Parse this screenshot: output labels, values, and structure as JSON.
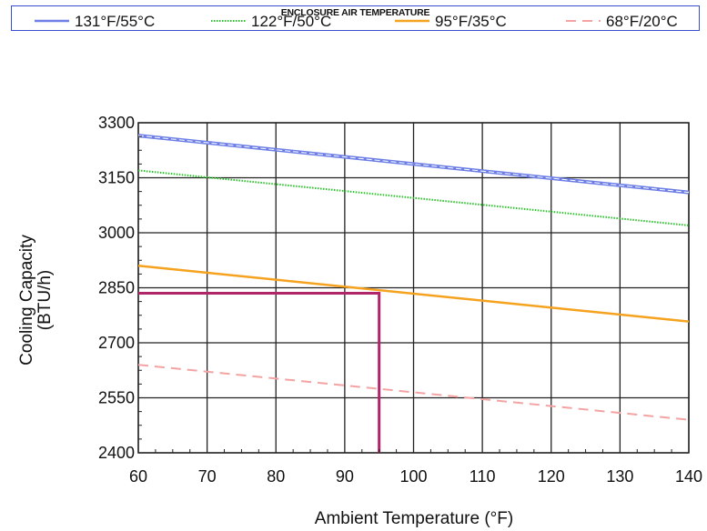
{
  "chart_data": {
    "type": "line",
    "legend_title": "ENCLOSURE AIR TEMPERATURE",
    "xlabel": "Ambient Temperature (°F)",
    "ylabel": [
      "Cooling Capacity",
      "(BTU/h)"
    ],
    "xlim": [
      60,
      140
    ],
    "ylim": [
      2400,
      3300
    ],
    "x_ticks": [
      60,
      70,
      80,
      90,
      100,
      110,
      120,
      130,
      140
    ],
    "y_ticks": [
      2400,
      2550,
      2700,
      2850,
      3000,
      3150,
      3300
    ],
    "grid": true,
    "legend_position": "top",
    "series": [
      {
        "name": "131°F/55°C",
        "x": [
          60,
          140
        ],
        "values": [
          3265,
          3110
        ],
        "color": "#6d7fe6",
        "style": "solid-double"
      },
      {
        "name": "122°F/50°C",
        "x": [
          60,
          140
        ],
        "values": [
          3170,
          3020
        ],
        "color": "#29c429",
        "style": "dotted"
      },
      {
        "name": "95°F/35°C",
        "x": [
          60,
          140
        ],
        "values": [
          2910,
          2758
        ],
        "color": "#f5a21e",
        "style": "solid"
      },
      {
        "name": "68°F/20°C",
        "x": [
          60,
          140
        ],
        "values": [
          2640,
          2490
        ],
        "color": "#f4a3a3",
        "style": "dashed"
      }
    ],
    "annotation": {
      "color": "#b0246a",
      "x": 95,
      "y": 2835
    }
  }
}
